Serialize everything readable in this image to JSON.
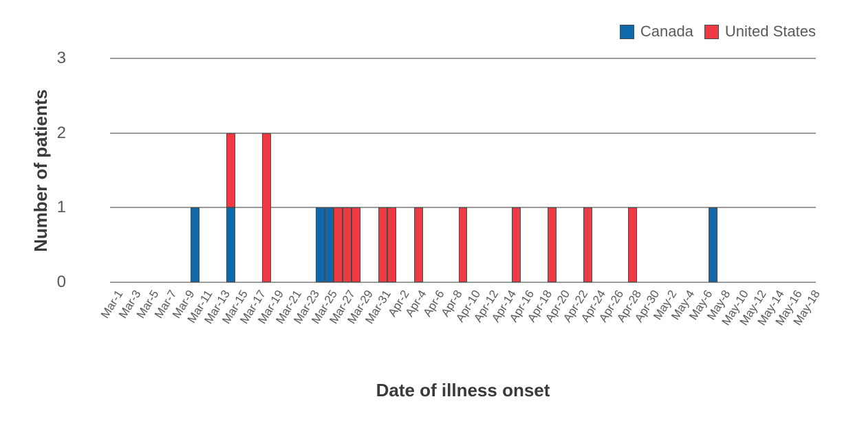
{
  "chart_data": {
    "type": "bar",
    "variant": "stacked-daily-epi-curve",
    "title": "",
    "xlabel": "Date of illness onset",
    "ylabel": "Number of patients",
    "ylim": [
      0,
      3
    ],
    "yticks": [
      0,
      1,
      2,
      3
    ],
    "x_axis_range": "daily bins from Mar-1 through May-18",
    "grid": "horizontal",
    "legend_position": "top-right",
    "xtick_labels": [
      "Mar-1",
      "Mar-3",
      "Mar-5",
      "Mar-7",
      "Mar-9",
      "Mar-11",
      "Mar-13",
      "Mar-15",
      "Mar-17",
      "Mar-19",
      "Mar-21",
      "Mar-23",
      "Mar-25",
      "Mar-27",
      "Mar-29",
      "Mar-31",
      "Apr-2",
      "Apr-4",
      "Apr-6",
      "Apr-8",
      "Apr-10",
      "Apr-12",
      "Apr-14",
      "Apr-16",
      "Apr-18",
      "Apr-20",
      "Apr-22",
      "Apr-24",
      "Apr-26",
      "Apr-28",
      "Apr-30",
      "May-2",
      "May-4",
      "May-6",
      "May-8",
      "May-10",
      "May-12",
      "May-14",
      "May-16",
      "May-18"
    ],
    "series": [
      {
        "name": "Canada",
        "color": "#0f68a9"
      },
      {
        "name": "United States",
        "color": "#ee3b43"
      }
    ],
    "bars": [
      {
        "date": "Mar-10",
        "canada": 1,
        "us": 0
      },
      {
        "date": "Mar-14",
        "canada": 1,
        "us": 1
      },
      {
        "date": "Mar-18",
        "canada": 0,
        "us": 2
      },
      {
        "date": "Mar-24",
        "canada": 1,
        "us": 0
      },
      {
        "date": "Mar-25",
        "canada": 1,
        "us": 0
      },
      {
        "date": "Mar-26",
        "canada": 0,
        "us": 1
      },
      {
        "date": "Mar-27",
        "canada": 0,
        "us": 1
      },
      {
        "date": "Mar-28",
        "canada": 0,
        "us": 1
      },
      {
        "date": "Mar-31",
        "canada": 0,
        "us": 1
      },
      {
        "date": "Apr-1",
        "canada": 0,
        "us": 1
      },
      {
        "date": "Apr-4",
        "canada": 0,
        "us": 1
      },
      {
        "date": "Apr-9",
        "canada": 0,
        "us": 1
      },
      {
        "date": "Apr-15",
        "canada": 0,
        "us": 1
      },
      {
        "date": "Apr-19",
        "canada": 0,
        "us": 1
      },
      {
        "date": "Apr-23",
        "canada": 0,
        "us": 1
      },
      {
        "date": "Apr-28",
        "canada": 0,
        "us": 1
      },
      {
        "date": "May-7",
        "canada": 1,
        "us": 0
      }
    ],
    "colors": {
      "gridline": "#9a9a9a",
      "bar_outline": "#4a4a4a",
      "tick_text": "#595959",
      "axis_title_text": "#3a3a3a"
    }
  }
}
